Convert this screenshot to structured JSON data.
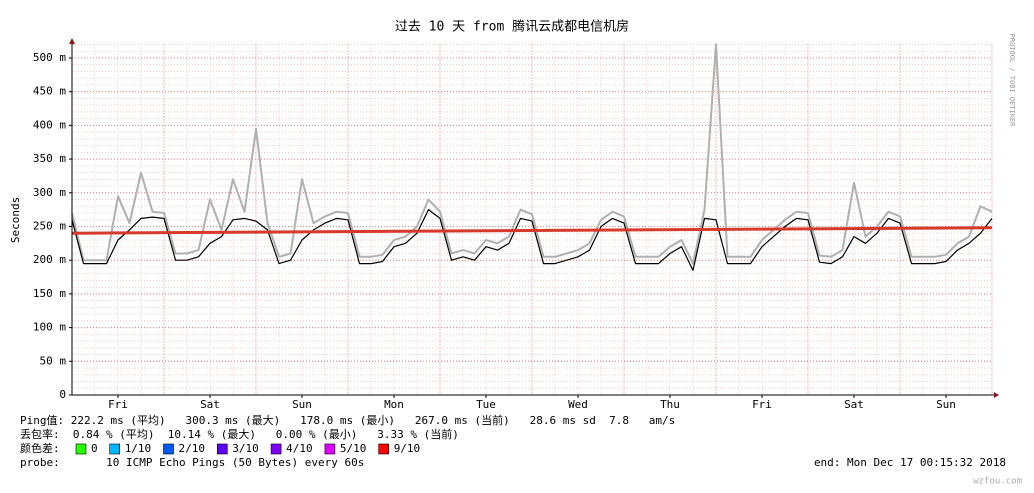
{
  "chart_data": {
    "type": "line",
    "title": "过去 10 天 from 腾讯云成都电信机房",
    "ylabel": "Seconds",
    "side_text": "PROTOOL / TOBI OETIKER",
    "xlim": [
      0,
      240
    ],
    "ylim": [
      0,
      520
    ],
    "yticks": [
      {
        "value": 0,
        "label": "0"
      },
      {
        "value": 50,
        "label": "50 m"
      },
      {
        "value": 100,
        "label": "100 m"
      },
      {
        "value": 150,
        "label": "150 m"
      },
      {
        "value": 200,
        "label": "200 m"
      },
      {
        "value": 250,
        "label": "250 m"
      },
      {
        "value": 300,
        "label": "300 m"
      },
      {
        "value": 350,
        "label": "350 m"
      },
      {
        "value": 400,
        "label": "400 m"
      },
      {
        "value": 450,
        "label": "450 m"
      },
      {
        "value": 500,
        "label": "500 m"
      }
    ],
    "xticks": [
      {
        "value": 12,
        "label": "Fri"
      },
      {
        "value": 36,
        "label": "Sat"
      },
      {
        "value": 60,
        "label": "Sun"
      },
      {
        "value": 84,
        "label": "Mon"
      },
      {
        "value": 108,
        "label": "Tue"
      },
      {
        "value": 132,
        "label": "Wed"
      },
      {
        "value": 156,
        "label": "Thu"
      },
      {
        "value": 180,
        "label": "Fri"
      },
      {
        "value": 204,
        "label": "Sat"
      },
      {
        "value": 228,
        "label": "Sun"
      }
    ],
    "grid": true,
    "series": [
      {
        "color": "#b0b0b0",
        "x": [
          0,
          3,
          6,
          9,
          12,
          15,
          18,
          21,
          24,
          27,
          30,
          33,
          36,
          39,
          42,
          45,
          48,
          51,
          54,
          57,
          60,
          63,
          66,
          69,
          72,
          75,
          78,
          81,
          84,
          87,
          90,
          93,
          96,
          99,
          102,
          105,
          108,
          111,
          114,
          117,
          120,
          123,
          126,
          129,
          132,
          135,
          138,
          141,
          144,
          147,
          150,
          153,
          156,
          159,
          162,
          165,
          168,
          171,
          174,
          177,
          180,
          183,
          186,
          189,
          192,
          195,
          198,
          201,
          204,
          207,
          210,
          213,
          216,
          219,
          222,
          225,
          228,
          231,
          234,
          237,
          240
        ],
        "values": [
          270,
          200,
          200,
          200,
          295,
          255,
          330,
          272,
          270,
          210,
          210,
          215,
          290,
          245,
          320,
          272,
          395,
          255,
          205,
          210,
          320,
          255,
          265,
          272,
          270,
          205,
          205,
          208,
          230,
          235,
          250,
          290,
          272,
          210,
          215,
          210,
          230,
          225,
          235,
          275,
          268,
          205,
          205,
          210,
          215,
          225,
          260,
          272,
          265,
          205,
          205,
          205,
          220,
          230,
          195,
          275,
          520,
          205,
          205,
          205,
          230,
          245,
          260,
          272,
          270,
          207,
          205,
          215,
          315,
          235,
          250,
          272,
          265,
          205,
          205,
          205,
          208,
          225,
          235,
          280,
          272
        ]
      },
      {
        "color": "#000000",
        "x": [
          0,
          3,
          6,
          9,
          12,
          15,
          18,
          21,
          24,
          27,
          30,
          33,
          36,
          39,
          42,
          45,
          48,
          51,
          54,
          57,
          60,
          63,
          66,
          69,
          72,
          75,
          78,
          81,
          84,
          87,
          90,
          93,
          96,
          99,
          102,
          105,
          108,
          111,
          114,
          117,
          120,
          123,
          126,
          129,
          132,
          135,
          138,
          141,
          144,
          147,
          150,
          153,
          156,
          159,
          162,
          165,
          168,
          171,
          174,
          177,
          180,
          183,
          186,
          189,
          192,
          195,
          198,
          201,
          204,
          207,
          210,
          213,
          216,
          219,
          222,
          225,
          228,
          231,
          234,
          237,
          240
        ],
        "values": [
          260,
          195,
          195,
          195,
          230,
          245,
          262,
          264,
          262,
          200,
          200,
          205,
          225,
          235,
          260,
          262,
          258,
          245,
          195,
          200,
          230,
          245,
          255,
          262,
          260,
          195,
          195,
          198,
          220,
          225,
          240,
          275,
          262,
          200,
          205,
          200,
          220,
          215,
          225,
          262,
          258,
          195,
          195,
          200,
          205,
          215,
          250,
          262,
          255,
          195,
          195,
          195,
          210,
          220,
          185,
          262,
          260,
          195,
          195,
          195,
          220,
          235,
          250,
          262,
          260,
          197,
          195,
          205,
          235,
          225,
          240,
          262,
          255,
          195,
          195,
          195,
          198,
          215,
          225,
          240,
          262
        ]
      },
      {
        "color": "#d7392a",
        "x": [
          0,
          240
        ],
        "values": [
          240,
          248
        ]
      }
    ],
    "ping_line": "Ping值: 222.2 ms (平均)   300.3 ms (最大)   178.0 ms (最小)   267.0 ms (当前)   28.6 ms sd  7.8   am/s",
    "loss_line": "丢包率:  0.84 % (平均)  10.14 % (最大)   0.00 % (最小)   3.33 % (当前)",
    "legend_title": "颜色差:",
    "legend": [
      {
        "label": "0",
        "color": "#26ff00"
      },
      {
        "label": "1/10",
        "color": "#00b8ff"
      },
      {
        "label": "2/10",
        "color": "#0059ff"
      },
      {
        "label": "3/10",
        "color": "#5e00ff"
      },
      {
        "label": "4/10",
        "color": "#7e00ff"
      },
      {
        "label": "5/10",
        "color": "#dd00ff"
      },
      {
        "label": "9/10",
        "color": "#ff0000"
      }
    ],
    "probe_line": "probe:       10 ICMP Echo Pings (50 Bytes) every 60s",
    "end_line": "end: Mon Dec 17 00:15:32 2018",
    "watermark": "wzfou.com"
  }
}
